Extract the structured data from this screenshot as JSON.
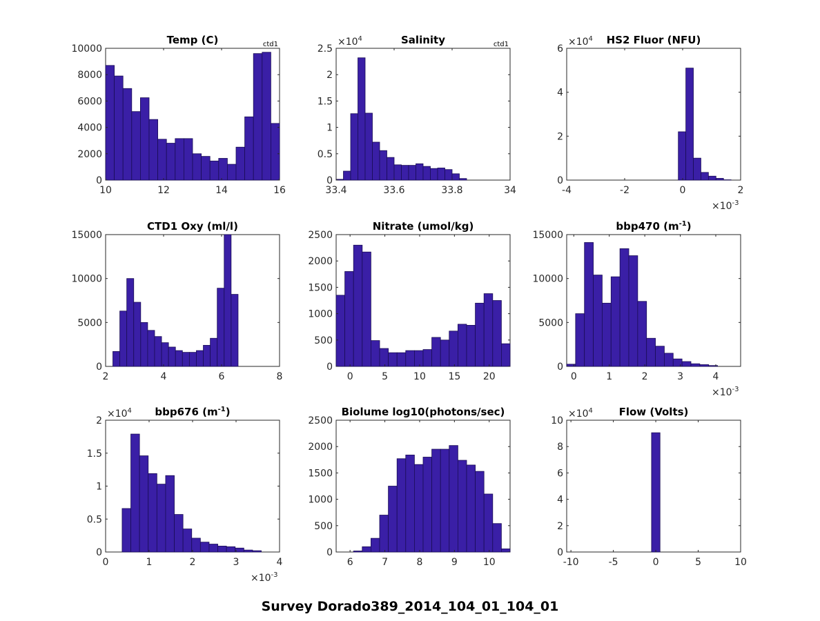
{
  "figure": {
    "suptitle": "Survey Dorado389_2014_104_01_104_01"
  },
  "colors": {
    "bar_fill": "#3a1fa6",
    "bar_edge": "#1a0d55",
    "axis": "#262626"
  },
  "chart_data": [
    {
      "type": "bar",
      "title": "Temp (C)",
      "corner_label": "ctd1",
      "xlim": [
        10,
        16
      ],
      "ylim": [
        0,
        10000
      ],
      "xticks": [
        10,
        12,
        14,
        16
      ],
      "xtick_labels": [
        "10",
        "12",
        "14",
        "16"
      ],
      "yticks": [
        0,
        2000,
        4000,
        6000,
        8000,
        10000
      ],
      "ytick_labels": [
        "0",
        "2000",
        "4000",
        "6000",
        "8000",
        "10000"
      ],
      "bins_start": 10,
      "bin_width": 0.3,
      "values": [
        8700,
        7900,
        6950,
        5200,
        6250,
        4600,
        3100,
        2800,
        3150,
        3150,
        2000,
        1800,
        1450,
        1650,
        1200,
        2500,
        4800,
        9600,
        9700,
        4300
      ]
    },
    {
      "type": "bar",
      "title": "Salinity",
      "corner_label": "ctd1",
      "exponent": "4",
      "xlim": [
        33.4,
        34
      ],
      "ylim": [
        0,
        25000
      ],
      "xticks": [
        33.4,
        33.6,
        33.8,
        34
      ],
      "xtick_labels": [
        "33.4",
        "33.6",
        "33.8",
        "34"
      ],
      "yticks": [
        0,
        5000,
        10000,
        15000,
        20000,
        25000
      ],
      "ytick_labels": [
        "0",
        "0.5",
        "1",
        "1.5",
        "2",
        "2.5"
      ],
      "bins_start": 33.4,
      "bin_width": 0.025,
      "values": [
        150,
        1700,
        12600,
        23200,
        12700,
        7200,
        5600,
        4300,
        2900,
        2800,
        2800,
        3100,
        2600,
        2200,
        2300,
        2000,
        1200,
        300,
        0,
        0,
        0,
        0,
        0,
        0
      ]
    },
    {
      "type": "bar",
      "title": "HS2 Fluor (NFU)",
      "exponent": "4",
      "x_exponent": "-3",
      "xlim": [
        -0.004,
        0.002
      ],
      "ylim": [
        0,
        60000
      ],
      "xticks": [
        -0.004,
        -0.002,
        0,
        0.002
      ],
      "xtick_labels": [
        "-4",
        "-2",
        "0",
        "2"
      ],
      "yticks": [
        0,
        20000,
        40000,
        60000
      ],
      "ytick_labels": [
        "0",
        "2",
        "4",
        "6"
      ],
      "bins_start": -0.00015,
      "bin_width": 0.00026,
      "values": [
        22000,
        51000,
        10000,
        3500,
        1800,
        800,
        150
      ]
    },
    {
      "type": "bar",
      "title": "CTD1 Oxy (ml/l)",
      "xlim": [
        2,
        8
      ],
      "ylim": [
        0,
        15000
      ],
      "xticks": [
        2,
        4,
        6,
        8
      ],
      "xtick_labels": [
        "2",
        "4",
        "6",
        "8"
      ],
      "yticks": [
        0,
        5000,
        10000,
        15000
      ],
      "ytick_labels": [
        "0",
        "5000",
        "10000",
        "15000"
      ],
      "bins_start": 2.25,
      "bin_width": 0.24,
      "values": [
        1700,
        6300,
        10000,
        7300,
        5000,
        4100,
        3400,
        2700,
        2200,
        1800,
        1600,
        1600,
        1800,
        2400,
        3200,
        8900,
        15000,
        8200
      ]
    },
    {
      "type": "bar",
      "title": "Nitrate (umol/kg)",
      "xlim": [
        -2,
        23
      ],
      "ylim": [
        0,
        2500
      ],
      "xticks": [
        0,
        5,
        10,
        15,
        20
      ],
      "xtick_labels": [
        "0",
        "5",
        "10",
        "15",
        "20"
      ],
      "yticks": [
        0,
        500,
        1000,
        1500,
        2000,
        2500
      ],
      "ytick_labels": [
        "0",
        "500",
        "1000",
        "1500",
        "2000",
        "2500"
      ],
      "bins_start": -2,
      "bin_width": 1.25,
      "values": [
        1350,
        1800,
        2300,
        2170,
        490,
        340,
        260,
        260,
        300,
        300,
        320,
        550,
        500,
        670,
        800,
        780,
        1200,
        1380,
        1250,
        430
      ]
    },
    {
      "type": "bar",
      "title": "bbp470 (m",
      "title_sup": "-1",
      "title_end": ")",
      "x_exponent": "-3",
      "xlim": [
        -0.0002,
        0.0047
      ],
      "ylim": [
        0,
        15000
      ],
      "xticks": [
        0,
        0.001,
        0.002,
        0.003,
        0.004
      ],
      "xtick_labels": [
        "0",
        "1",
        "2",
        "3",
        "4"
      ],
      "yticks": [
        0,
        5000,
        10000,
        15000
      ],
      "ytick_labels": [
        "0",
        "5000",
        "10000",
        "15000"
      ],
      "bins_start": -0.0002,
      "bin_width": 0.00025,
      "values": [
        250,
        6000,
        14100,
        10400,
        7200,
        10200,
        13400,
        12600,
        7400,
        3200,
        2300,
        1500,
        850,
        550,
        300,
        200,
        100,
        0
      ]
    },
    {
      "type": "bar",
      "title": "bbp676 (m",
      "title_sup": "-1",
      "title_end": ")",
      "exponent": "4",
      "x_exponent": "-3",
      "xlim": [
        0,
        0.004
      ],
      "ylim": [
        0,
        20000
      ],
      "xticks": [
        0,
        0.001,
        0.002,
        0.003,
        0.004
      ],
      "xtick_labels": [
        "0",
        "1",
        "2",
        "3",
        "4"
      ],
      "yticks": [
        0,
        5000,
        10000,
        15000,
        20000
      ],
      "ytick_labels": [
        "0",
        "0.5",
        "1",
        "1.5",
        "2"
      ],
      "bins_start": 0.00038,
      "bin_width": 0.0002,
      "values": [
        6600,
        17900,
        14600,
        11900,
        10300,
        11600,
        5700,
        3500,
        2100,
        1500,
        1200,
        900,
        800,
        600,
        300,
        200
      ]
    },
    {
      "type": "bar",
      "title": "Biolume log10(photons/sec)",
      "xlim": [
        5.6,
        10.6
      ],
      "ylim": [
        0,
        2500
      ],
      "xticks": [
        6,
        7,
        8,
        9,
        10
      ],
      "xtick_labels": [
        "6",
        "7",
        "8",
        "9",
        "10"
      ],
      "yticks": [
        0,
        500,
        1000,
        1500,
        2000,
        2500
      ],
      "ytick_labels": [
        "0",
        "500",
        "1000",
        "1500",
        "2000",
        "2500"
      ],
      "bins_start": 5.85,
      "bin_width": 0.25,
      "values": [
        0,
        20,
        100,
        260,
        700,
        1250,
        1770,
        1840,
        1660,
        1800,
        1950,
        1950,
        2020,
        1740,
        1650,
        1530,
        1100,
        540,
        60
      ]
    },
    {
      "type": "bar",
      "title": "Flow (Volts)",
      "exponent": "4",
      "xlim": [
        -10.5,
        10
      ],
      "ylim": [
        0,
        100000
      ],
      "xticks": [
        -10,
        -5,
        0,
        5,
        10
      ],
      "xtick_labels": [
        "-10",
        "-5",
        "0",
        "5",
        "10"
      ],
      "yticks": [
        0,
        20000,
        40000,
        60000,
        80000,
        100000
      ],
      "ytick_labels": [
        "0",
        "2",
        "4",
        "6",
        "8",
        "10"
      ],
      "bins_start": -0.5,
      "bin_width": 1,
      "values": [
        90500
      ]
    }
  ]
}
